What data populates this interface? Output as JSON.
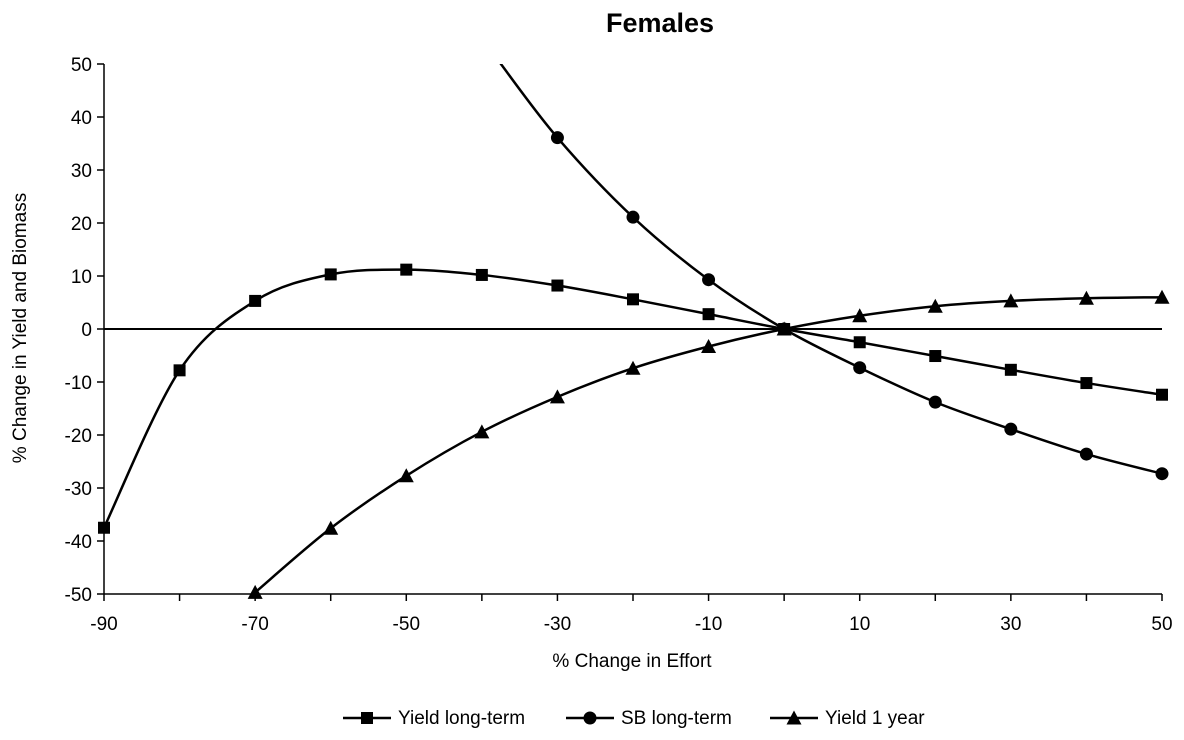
{
  "chart_data": {
    "type": "line",
    "title": "Females",
    "xlabel": "% Change in Effort",
    "ylabel": "% Change in Yield and Biomass",
    "xlim": [
      -90,
      50
    ],
    "ylim": [
      -50,
      50
    ],
    "x_ticks": [
      -90,
      -80,
      -70,
      -60,
      -50,
      -40,
      -30,
      -20,
      -10,
      0,
      10,
      20,
      30,
      40,
      50
    ],
    "x_tick_labels": [
      "-90",
      "-70",
      "-50",
      "-30",
      "-10",
      "10",
      "30",
      "50"
    ],
    "y_ticks": [
      -50,
      -40,
      -30,
      -20,
      -10,
      0,
      10,
      20,
      30,
      40,
      50
    ],
    "y_tick_labels": [
      "-50",
      "-40",
      "-30",
      "-20",
      "-10",
      "0",
      "10",
      "20",
      "30",
      "40",
      "50"
    ],
    "grid": false,
    "zero_line": true,
    "legend_position": "bottom",
    "series": [
      {
        "name": "Yield long-term",
        "marker": "square",
        "color": "#000000",
        "x": [
          -90,
          -80,
          -70,
          -60,
          -50,
          -40,
          -30,
          -20,
          -10,
          0,
          10,
          20,
          30,
          40,
          50
        ],
        "y": [
          -37.5,
          -7.8,
          5.3,
          10.3,
          11.2,
          10.2,
          8.2,
          5.6,
          2.8,
          0,
          -2.5,
          -5.1,
          -7.7,
          -10.2,
          -12.4
        ]
      },
      {
        "name": "SB long-term",
        "marker": "circle",
        "color": "#000000",
        "x": [
          -30,
          -20,
          -10,
          0,
          10,
          20,
          30,
          40,
          50
        ],
        "y": [
          36.1,
          21.1,
          9.3,
          0,
          -7.3,
          -13.8,
          -18.9,
          -23.6,
          -27.3
        ],
        "line_extends_to": [
          -38,
          51
        ]
      },
      {
        "name": "Yield 1 year",
        "marker": "triangle",
        "color": "#000000",
        "x": [
          -70,
          -60,
          -50,
          -40,
          -30,
          -20,
          -10,
          0,
          10,
          20,
          30,
          40,
          50
        ],
        "y": [
          -49.7,
          -37.6,
          -27.7,
          -19.4,
          -12.8,
          -7.4,
          -3.3,
          0,
          2.5,
          4.3,
          5.3,
          5.8,
          6.0
        ]
      }
    ]
  }
}
